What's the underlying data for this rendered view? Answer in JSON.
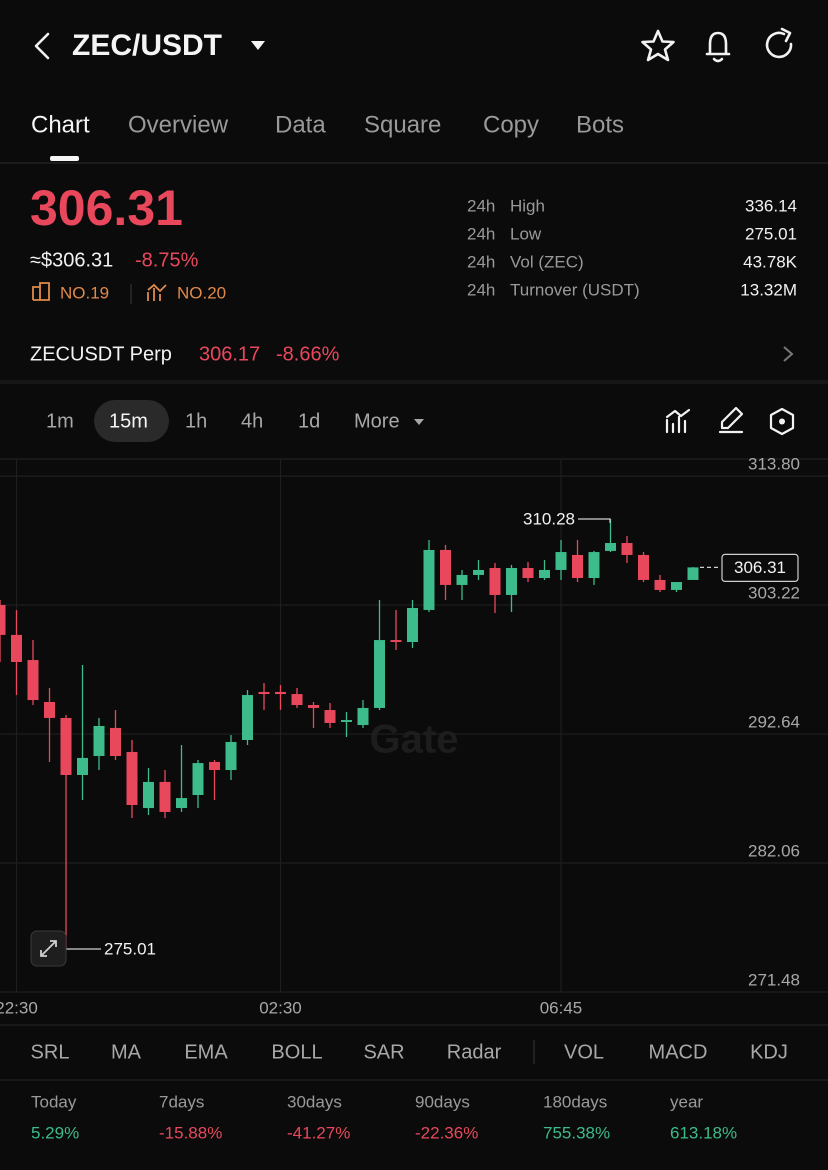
{
  "header": {
    "title": "ZEC/USDT"
  },
  "tabs": [
    "Chart",
    "Overview",
    "Data",
    "Square",
    "Copy",
    "Bots"
  ],
  "price": {
    "last": "306.31",
    "usd": "≈$306.31",
    "change": "-8.75%",
    "rank_1": "NO.19",
    "rank_2": "NO.20"
  },
  "stats": [
    {
      "period": "24h",
      "label": "High",
      "value": "336.14"
    },
    {
      "period": "24h",
      "label": "Low",
      "value": "275.01"
    },
    {
      "period": "24h",
      "label": "Vol (ZEC)",
      "value": "43.78K"
    },
    {
      "period": "24h",
      "label": "Turnover (USDT)",
      "value": "13.32M"
    }
  ],
  "perp": {
    "name": "ZECUSDT Perp",
    "price": "306.17",
    "change": "-8.66%"
  },
  "intervals": [
    "1m",
    "15m",
    "1h",
    "4h",
    "1d",
    "More"
  ],
  "chart_data": {
    "type": "candlestick",
    "watermark": "Gate",
    "up_color": "#3dbb8a",
    "down_color": "#e9485c",
    "grid": true,
    "categories": [
      null,
      "22:30",
      null,
      null,
      null,
      null,
      null,
      null,
      null,
      null,
      null,
      null,
      null,
      null,
      null,
      null,
      null,
      "02:30",
      null,
      null,
      null,
      null,
      null,
      null,
      null,
      null,
      null,
      null,
      null,
      null,
      null,
      null,
      null,
      null,
      "06:45",
      null,
      null,
      null,
      null,
      null,
      null,
      null,
      null
    ],
    "open": [
      303.23,
      300.77,
      298.71,
      295.27,
      293.96,
      289.28,
      290.84,
      293.14,
      291.17,
      286.57,
      288.71,
      286.57,
      287.64,
      290.35,
      289.69,
      292.15,
      296.09,
      296.09,
      295.92,
      295.02,
      294.61,
      293.63,
      293.38,
      294.78,
      300.35,
      300.19,
      302.82,
      307.74,
      304.87,
      305.69,
      306.26,
      304.05,
      306.26,
      305.44,
      306.1,
      307.33,
      305.44,
      307.66,
      308.31,
      307.33,
      305.28,
      304.46,
      305.28
    ],
    "high": [
      303.64,
      302.82,
      300.35,
      296.42,
      294.2,
      298.3,
      293.96,
      294.61,
      292.15,
      289.85,
      289.69,
      291.74,
      290.51,
      290.51,
      292.56,
      296.25,
      296.83,
      296.66,
      296.42,
      295.27,
      295.19,
      294.45,
      295.43,
      303.64,
      302.82,
      303.64,
      308.56,
      308.15,
      306.1,
      306.92,
      306.67,
      306.51,
      306.75,
      306.92,
      308.56,
      308.56,
      307.66,
      310.28,
      308.89,
      307.57,
      305.69,
      304.87,
      306.34
    ],
    "low": [
      298.55,
      295.84,
      295.02,
      290.35,
      275.01,
      287.23,
      289.69,
      290.51,
      285.75,
      286.0,
      285.75,
      286.25,
      286.57,
      287.23,
      288.87,
      291.74,
      294.61,
      294.61,
      294.78,
      293.14,
      293.14,
      292.4,
      293.14,
      294.61,
      299.53,
      299.7,
      302.65,
      303.64,
      303.64,
      305.28,
      302.57,
      302.65,
      305.11,
      305.28,
      305.28,
      305.11,
      304.87,
      307.57,
      306.67,
      305.11,
      304.29,
      304.29,
      305.28
    ],
    "close": [
      300.77,
      298.55,
      295.43,
      293.96,
      289.28,
      290.68,
      293.3,
      290.84,
      286.82,
      288.71,
      286.25,
      287.39,
      290.26,
      289.69,
      291.99,
      295.84,
      295.92,
      295.92,
      295.02,
      294.78,
      293.55,
      293.79,
      294.78,
      300.35,
      300.19,
      302.98,
      307.74,
      304.87,
      305.69,
      306.1,
      304.05,
      306.26,
      305.44,
      306.1,
      307.57,
      305.44,
      307.57,
      308.31,
      307.33,
      305.28,
      304.46,
      305.11,
      306.31
    ],
    "ylim": [
      271.48,
      315.12
    ],
    "yticks": [
      271.48,
      282.06,
      292.64,
      303.22,
      {
        "value": 313.8,
        "label": "313.80"
      }
    ],
    "high_label": 310.28,
    "low_label": 275.01,
    "last_label": 306.31
  },
  "indicators": [
    "SRL",
    "MA",
    "EMA",
    "BOLL",
    "SAR",
    "Radar",
    "VOL",
    "MACD",
    "KDJ"
  ],
  "performance": [
    {
      "label": "Today",
      "value": "5.29%"
    },
    {
      "label": "7days",
      "value": "-15.88%"
    },
    {
      "label": "30days",
      "value": "-41.27%"
    },
    {
      "label": "90days",
      "value": "-22.36%"
    },
    {
      "label": "180days",
      "value": "755.38%"
    },
    {
      "label": "year",
      "value": "613.18%"
    }
  ]
}
